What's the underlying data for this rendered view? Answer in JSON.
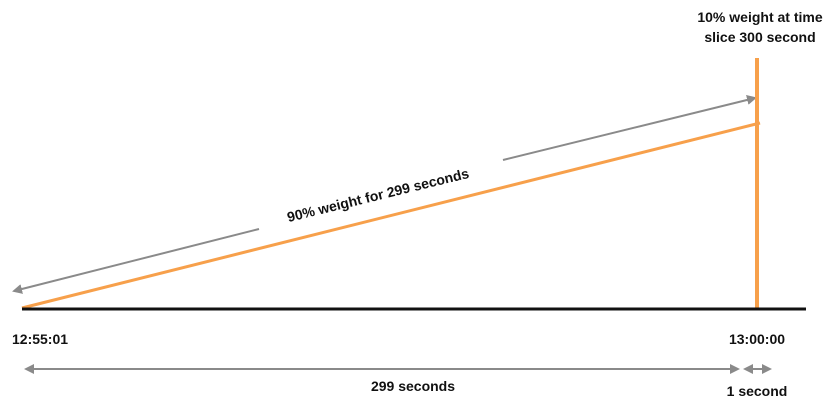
{
  "colors": {
    "accent": "#f7a04b",
    "arrow": "#8a8a8a",
    "baseline": "#111111",
    "text": "#111111"
  },
  "labels": {
    "top_note_line1": "10% weight at time",
    "top_note_line2": "slice 300 second",
    "diagonal_note": "90% weight for 299 seconds",
    "start_time": "12:55:01",
    "end_time": "13:00:00",
    "span_long": "299 seconds",
    "span_short": "1 second"
  }
}
